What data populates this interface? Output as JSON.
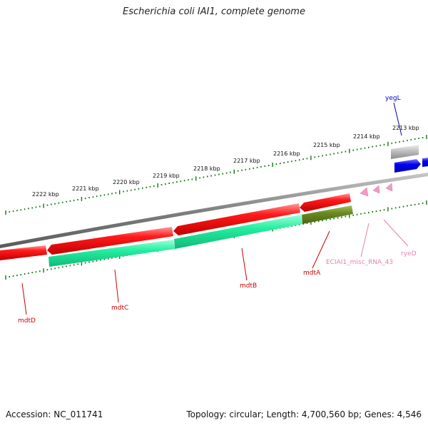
{
  "title": "Escherichia coli IAI1, complete genome",
  "footer": {
    "accession": "Accession: NC_011741",
    "summary": "Topology: circular; Length: 4,700,560 bp; Genes: 4,546"
  },
  "scale_labels": [
    "2213 kbp",
    "2214 kbp",
    "2215 kbp",
    "2216 kbp",
    "2217 kbp",
    "2218 kbp",
    "2219 kbp",
    "2220 kbp",
    "2221 kbp",
    "2222 kbp"
  ],
  "features": [
    {
      "name": "yegL",
      "color": "#0000cc"
    },
    {
      "name": "mdtD",
      "color": "#cc0000"
    },
    {
      "name": "mdtC",
      "color": "#cc0000"
    },
    {
      "name": "mdtB",
      "color": "#cc0000"
    },
    {
      "name": "mdtA",
      "color": "#cc0000"
    },
    {
      "name": "ECIAI1_misc_RNA_43",
      "color": "#e87fb0"
    },
    {
      "name": "ryeD",
      "color": "#e87fb0"
    }
  ],
  "colors": {
    "backbone": "#808080",
    "cds": "#ff0000",
    "gene": "#22eea0",
    "gene_dark": "#6b8a22",
    "gene_gray": "#bdbdbd",
    "gene_blue": "#0000ee",
    "rna": "#f29ac4",
    "tick": "#117711"
  }
}
